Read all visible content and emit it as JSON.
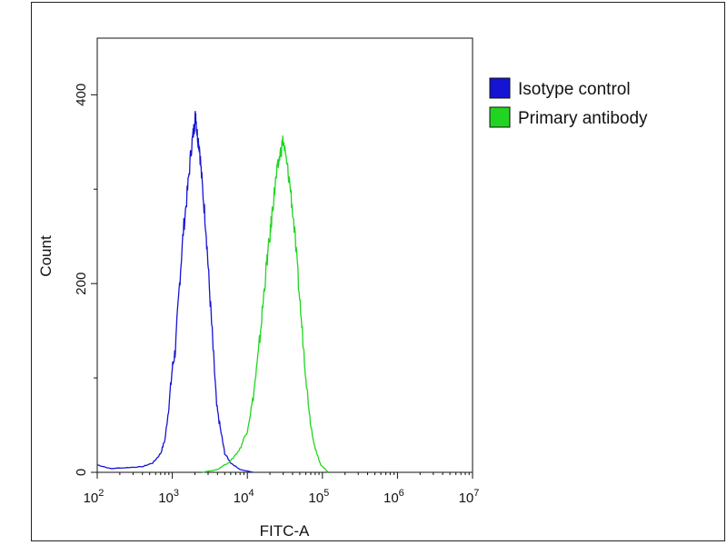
{
  "chart_data": {
    "type": "line",
    "title": "",
    "xlabel": "FITC-A",
    "ylabel": "Count",
    "x_scale": "log",
    "xlim": [
      100,
      10000000
    ],
    "ylim": [
      0,
      460
    ],
    "grid": false,
    "legend_position": "right",
    "x_ticks": [
      {
        "value": 100,
        "base": "10",
        "exp": "2"
      },
      {
        "value": 1000,
        "base": "10",
        "exp": "3"
      },
      {
        "value": 10000,
        "base": "10",
        "exp": "4"
      },
      {
        "value": 100000,
        "base": "10",
        "exp": "5"
      },
      {
        "value": 1000000,
        "base": "10",
        "exp": "6"
      },
      {
        "value": 10000000,
        "base": "10",
        "exp": "7"
      }
    ],
    "y_ticks": [
      {
        "value": 0,
        "label": "0"
      },
      {
        "value": 200,
        "label": "200"
      },
      {
        "value": 400,
        "label": "400"
      }
    ],
    "series": [
      {
        "name": "Isotype control",
        "color": "#1414d2",
        "points": [
          [
            100,
            8
          ],
          [
            150,
            4
          ],
          [
            250,
            5
          ],
          [
            400,
            6
          ],
          [
            550,
            10
          ],
          [
            700,
            20
          ],
          [
            800,
            35
          ],
          [
            900,
            70
          ],
          [
            1000,
            110
          ],
          [
            1100,
            130
          ],
          [
            1250,
            200
          ],
          [
            1400,
            255
          ],
          [
            1600,
            300
          ],
          [
            1800,
            345
          ],
          [
            1950,
            365
          ],
          [
            2050,
            380
          ],
          [
            2150,
            358
          ],
          [
            2300,
            345
          ],
          [
            2500,
            305
          ],
          [
            2800,
            260
          ],
          [
            3100,
            200
          ],
          [
            3500,
            130
          ],
          [
            3900,
            70
          ],
          [
            4400,
            45
          ],
          [
            5000,
            20
          ],
          [
            6000,
            10
          ],
          [
            8000,
            3
          ],
          [
            12000,
            0
          ]
        ]
      },
      {
        "name": "Primary antibody",
        "color": "#22d422",
        "points": [
          [
            2500,
            0
          ],
          [
            4000,
            3
          ],
          [
            6000,
            12
          ],
          [
            8000,
            25
          ],
          [
            10000,
            45
          ],
          [
            12000,
            80
          ],
          [
            14000,
            125
          ],
          [
            16000,
            175
          ],
          [
            18000,
            220
          ],
          [
            20000,
            250
          ],
          [
            22000,
            285
          ],
          [
            24000,
            310
          ],
          [
            27000,
            335
          ],
          [
            30000,
            352
          ],
          [
            33000,
            330
          ],
          [
            37000,
            305
          ],
          [
            42000,
            260
          ],
          [
            48000,
            200
          ],
          [
            55000,
            140
          ],
          [
            62000,
            90
          ],
          [
            70000,
            50
          ],
          [
            80000,
            25
          ],
          [
            95000,
            8
          ],
          [
            120000,
            0
          ]
        ]
      }
    ]
  }
}
